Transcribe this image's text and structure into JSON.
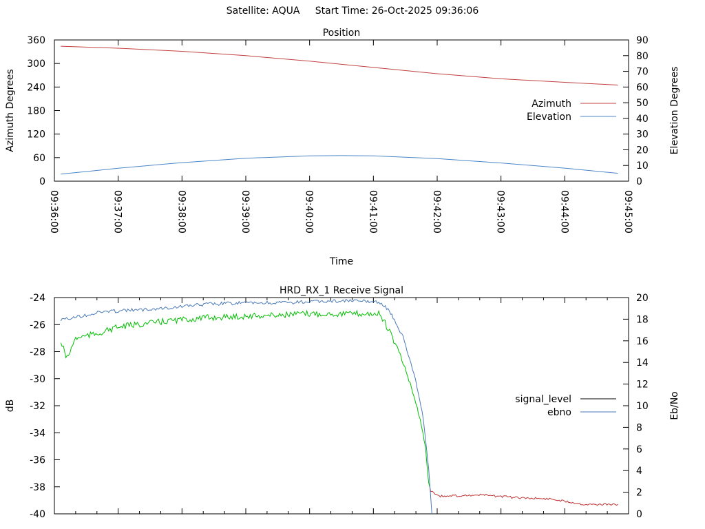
{
  "header": {
    "satellite": "Satellite: AQUA",
    "start_time": "Start Time: 26-Oct-2025 09:36:06"
  },
  "chart_data": [
    {
      "type": "line",
      "title": "Position",
      "xlabel": "Time",
      "ylabel": "Azimuth Degrees",
      "y2label": "Elevation Degrees",
      "xlim_seconds": [
        0,
        540
      ],
      "x_ticks": [
        "09:36:00",
        "09:37:00",
        "09:38:00",
        "09:39:00",
        "09:40:00",
        "09:41:00",
        "09:42:00",
        "09:43:00",
        "09:44:00",
        "09:45:00"
      ],
      "ylim": [
        0,
        360
      ],
      "y_ticks": [
        "0",
        "60",
        "120",
        "180",
        "240",
        "300",
        "360"
      ],
      "y2lim": [
        0,
        90
      ],
      "y2_ticks": [
        "0",
        "10",
        "20",
        "30",
        "40",
        "50",
        "60",
        "70",
        "80",
        "90"
      ],
      "legend_position": "right",
      "series": [
        {
          "name": "Azimuth",
          "axis": "y",
          "color": "#c04040",
          "x": [
            6,
            60,
            120,
            180,
            240,
            300,
            360,
            420,
            480,
            530
          ],
          "y": [
            344,
            339,
            331,
            320,
            306,
            290,
            274,
            261,
            252,
            245
          ]
        },
        {
          "name": "Elevation",
          "axis": "y2",
          "color": "#4a86c8",
          "x": [
            6,
            60,
            120,
            180,
            240,
            270,
            300,
            360,
            420,
            480,
            530
          ],
          "y": [
            4.5,
            8.2,
            11.8,
            14.6,
            16.1,
            16.3,
            16.1,
            14.4,
            11.6,
            8.3,
            5.0
          ]
        }
      ]
    },
    {
      "type": "line",
      "title": "HRD_RX_1 Receive Signal",
      "ylabel": "dB",
      "y2label": "Eb/No",
      "xlim_seconds": [
        0,
        540
      ],
      "ylim": [
        -40,
        -24
      ],
      "y_ticks": [
        "-40",
        "-38",
        "-36",
        "-34",
        "-32",
        "-30",
        "-28",
        "-26",
        "-24"
      ],
      "y2lim": [
        0,
        20
      ],
      "y2_ticks": [
        "0",
        "2",
        "4",
        "6",
        "8",
        "10",
        "12",
        "14",
        "16",
        "18",
        "20"
      ],
      "legend_position": "right",
      "legend": [
        {
          "name": "signal_level",
          "color": "#000000"
        },
        {
          "name": "ebno",
          "color": "#4a7ab8"
        }
      ],
      "series": [
        {
          "name": "signal_level",
          "axis": "y",
          "color": "#00c000",
          "x": [
            6,
            12,
            20,
            39,
            59,
            78,
            111,
            143,
            175,
            208,
            240,
            273,
            305,
            311,
            318,
            324,
            331,
            337,
            344,
            349,
            352,
            353
          ],
          "y": [
            -27.3,
            -28.5,
            -27.0,
            -26.7,
            -26.2,
            -26.0,
            -25.7,
            -25.5,
            -25.4,
            -25.3,
            -25.2,
            -25.2,
            -25.2,
            -25.9,
            -27.0,
            -28.0,
            -29.5,
            -31.0,
            -33.0,
            -35.1,
            -37.7,
            -38.0
          ]
        },
        {
          "name": "signal_level_low",
          "axis": "y",
          "color": "#c03030",
          "x": [
            353,
            354,
            363,
            402,
            434,
            467,
            499,
            530
          ],
          "y": [
            -38.0,
            -38.3,
            -38.7,
            -38.6,
            -38.8,
            -38.9,
            -39.3,
            -39.3
          ]
        },
        {
          "name": "ebno",
          "axis": "y2",
          "color": "#4a7ab8",
          "x": [
            6,
            26,
            46,
            78,
            111,
            143,
            175,
            208,
            240,
            273,
            305,
            315,
            321,
            328,
            334,
            341,
            347,
            352,
            355
          ],
          "y": [
            17.9,
            18.3,
            18.7,
            18.85,
            19.1,
            19.4,
            19.5,
            19.5,
            19.6,
            19.7,
            19.6,
            18.85,
            17.6,
            16.3,
            14.4,
            11.8,
            8.7,
            4.2,
            0
          ]
        }
      ]
    }
  ]
}
